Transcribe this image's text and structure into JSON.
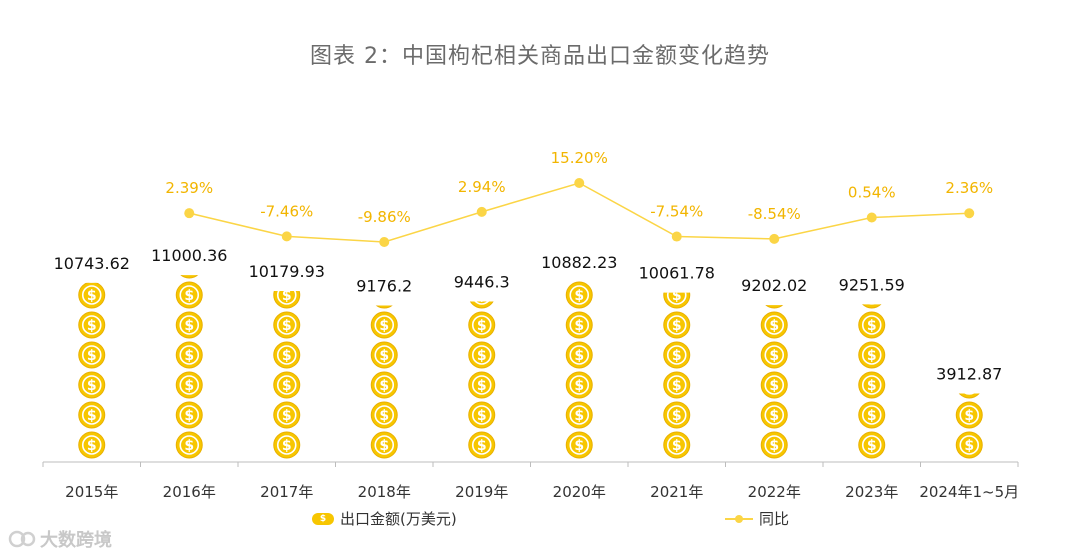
{
  "title": "图表 2：中国枸杞相关商品出口金额变化趋势",
  "watermark": "大数跨境",
  "legend": {
    "bar_label": "出口金额(万美元)",
    "line_label": "同比"
  },
  "colors": {
    "coin": "#f7c600",
    "coin_edge": "#e9b000",
    "line": "#fbd546",
    "yoy_label": "#f2b500",
    "axis": "#bdbdbd"
  },
  "chart_data": {
    "type": "bar",
    "title": "图表 2：中国枸杞相关商品出口金额变化趋势",
    "categories": [
      "2015年",
      "2016年",
      "2017年",
      "2018年",
      "2019年",
      "2020年",
      "2021年",
      "2022年",
      "2023年",
      "2024年1~5月"
    ],
    "series": [
      {
        "name": "出口金额(万美元)",
        "type": "pictorial-bar",
        "values": [
          10743.62,
          11000.36,
          10179.93,
          9176.2,
          9446.3,
          10882.23,
          10061.78,
          9202.02,
          9251.59,
          3912.87
        ],
        "labels": [
          "10743.62",
          "11000.36",
          "10179.93",
          "9176.2",
          "9446.3",
          "10882.23",
          "10061.78",
          "9202.02",
          "9251.59",
          "3912.87"
        ]
      },
      {
        "name": "同比",
        "type": "line",
        "values": [
          null,
          2.39,
          -7.46,
          -9.86,
          2.94,
          15.2,
          -7.54,
          -8.54,
          0.54,
          2.36
        ],
        "labels": [
          "",
          "2.39%",
          "-7.46%",
          "-9.86%",
          "2.94%",
          "15.20%",
          "-7.54%",
          "-8.54%",
          "0.54%",
          "2.36%"
        ]
      }
    ],
    "xlabel": "",
    "ylabel": "",
    "coin_unit": 1800,
    "legend_position": "bottom"
  }
}
